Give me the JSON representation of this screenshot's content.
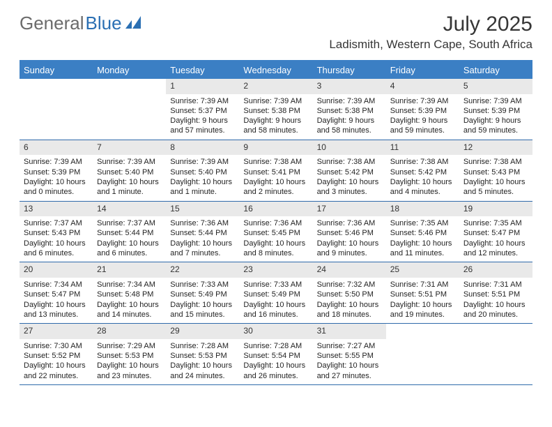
{
  "logo": {
    "general": "General",
    "blue": "Blue"
  },
  "title": "July 2025",
  "location": "Ladismith, Western Cape, South Africa",
  "colors": {
    "header_bg": "#3b7fc4",
    "header_text": "#ffffff",
    "daynum_bg": "#e9e9e9",
    "border": "#2f6aab",
    "text": "#232323",
    "logo_gray": "#6b6b6b",
    "logo_blue": "#2a6fb3"
  },
  "day_headers": [
    "Sunday",
    "Monday",
    "Tuesday",
    "Wednesday",
    "Thursday",
    "Friday",
    "Saturday"
  ],
  "weeks": [
    [
      null,
      null,
      {
        "n": "1",
        "sr": "Sunrise: 7:39 AM",
        "ss": "Sunset: 5:37 PM",
        "d1": "Daylight: 9 hours",
        "d2": "and 57 minutes."
      },
      {
        "n": "2",
        "sr": "Sunrise: 7:39 AM",
        "ss": "Sunset: 5:38 PM",
        "d1": "Daylight: 9 hours",
        "d2": "and 58 minutes."
      },
      {
        "n": "3",
        "sr": "Sunrise: 7:39 AM",
        "ss": "Sunset: 5:38 PM",
        "d1": "Daylight: 9 hours",
        "d2": "and 58 minutes."
      },
      {
        "n": "4",
        "sr": "Sunrise: 7:39 AM",
        "ss": "Sunset: 5:39 PM",
        "d1": "Daylight: 9 hours",
        "d2": "and 59 minutes."
      },
      {
        "n": "5",
        "sr": "Sunrise: 7:39 AM",
        "ss": "Sunset: 5:39 PM",
        "d1": "Daylight: 9 hours",
        "d2": "and 59 minutes."
      }
    ],
    [
      {
        "n": "6",
        "sr": "Sunrise: 7:39 AM",
        "ss": "Sunset: 5:39 PM",
        "d1": "Daylight: 10 hours",
        "d2": "and 0 minutes."
      },
      {
        "n": "7",
        "sr": "Sunrise: 7:39 AM",
        "ss": "Sunset: 5:40 PM",
        "d1": "Daylight: 10 hours",
        "d2": "and 1 minute."
      },
      {
        "n": "8",
        "sr": "Sunrise: 7:39 AM",
        "ss": "Sunset: 5:40 PM",
        "d1": "Daylight: 10 hours",
        "d2": "and 1 minute."
      },
      {
        "n": "9",
        "sr": "Sunrise: 7:38 AM",
        "ss": "Sunset: 5:41 PM",
        "d1": "Daylight: 10 hours",
        "d2": "and 2 minutes."
      },
      {
        "n": "10",
        "sr": "Sunrise: 7:38 AM",
        "ss": "Sunset: 5:42 PM",
        "d1": "Daylight: 10 hours",
        "d2": "and 3 minutes."
      },
      {
        "n": "11",
        "sr": "Sunrise: 7:38 AM",
        "ss": "Sunset: 5:42 PM",
        "d1": "Daylight: 10 hours",
        "d2": "and 4 minutes."
      },
      {
        "n": "12",
        "sr": "Sunrise: 7:38 AM",
        "ss": "Sunset: 5:43 PM",
        "d1": "Daylight: 10 hours",
        "d2": "and 5 minutes."
      }
    ],
    [
      {
        "n": "13",
        "sr": "Sunrise: 7:37 AM",
        "ss": "Sunset: 5:43 PM",
        "d1": "Daylight: 10 hours",
        "d2": "and 6 minutes."
      },
      {
        "n": "14",
        "sr": "Sunrise: 7:37 AM",
        "ss": "Sunset: 5:44 PM",
        "d1": "Daylight: 10 hours",
        "d2": "and 6 minutes."
      },
      {
        "n": "15",
        "sr": "Sunrise: 7:36 AM",
        "ss": "Sunset: 5:44 PM",
        "d1": "Daylight: 10 hours",
        "d2": "and 7 minutes."
      },
      {
        "n": "16",
        "sr": "Sunrise: 7:36 AM",
        "ss": "Sunset: 5:45 PM",
        "d1": "Daylight: 10 hours",
        "d2": "and 8 minutes."
      },
      {
        "n": "17",
        "sr": "Sunrise: 7:36 AM",
        "ss": "Sunset: 5:46 PM",
        "d1": "Daylight: 10 hours",
        "d2": "and 9 minutes."
      },
      {
        "n": "18",
        "sr": "Sunrise: 7:35 AM",
        "ss": "Sunset: 5:46 PM",
        "d1": "Daylight: 10 hours",
        "d2": "and 11 minutes."
      },
      {
        "n": "19",
        "sr": "Sunrise: 7:35 AM",
        "ss": "Sunset: 5:47 PM",
        "d1": "Daylight: 10 hours",
        "d2": "and 12 minutes."
      }
    ],
    [
      {
        "n": "20",
        "sr": "Sunrise: 7:34 AM",
        "ss": "Sunset: 5:47 PM",
        "d1": "Daylight: 10 hours",
        "d2": "and 13 minutes."
      },
      {
        "n": "21",
        "sr": "Sunrise: 7:34 AM",
        "ss": "Sunset: 5:48 PM",
        "d1": "Daylight: 10 hours",
        "d2": "and 14 minutes."
      },
      {
        "n": "22",
        "sr": "Sunrise: 7:33 AM",
        "ss": "Sunset: 5:49 PM",
        "d1": "Daylight: 10 hours",
        "d2": "and 15 minutes."
      },
      {
        "n": "23",
        "sr": "Sunrise: 7:33 AM",
        "ss": "Sunset: 5:49 PM",
        "d1": "Daylight: 10 hours",
        "d2": "and 16 minutes."
      },
      {
        "n": "24",
        "sr": "Sunrise: 7:32 AM",
        "ss": "Sunset: 5:50 PM",
        "d1": "Daylight: 10 hours",
        "d2": "and 18 minutes."
      },
      {
        "n": "25",
        "sr": "Sunrise: 7:31 AM",
        "ss": "Sunset: 5:51 PM",
        "d1": "Daylight: 10 hours",
        "d2": "and 19 minutes."
      },
      {
        "n": "26",
        "sr": "Sunrise: 7:31 AM",
        "ss": "Sunset: 5:51 PM",
        "d1": "Daylight: 10 hours",
        "d2": "and 20 minutes."
      }
    ],
    [
      {
        "n": "27",
        "sr": "Sunrise: 7:30 AM",
        "ss": "Sunset: 5:52 PM",
        "d1": "Daylight: 10 hours",
        "d2": "and 22 minutes."
      },
      {
        "n": "28",
        "sr": "Sunrise: 7:29 AM",
        "ss": "Sunset: 5:53 PM",
        "d1": "Daylight: 10 hours",
        "d2": "and 23 minutes."
      },
      {
        "n": "29",
        "sr": "Sunrise: 7:28 AM",
        "ss": "Sunset: 5:53 PM",
        "d1": "Daylight: 10 hours",
        "d2": "and 24 minutes."
      },
      {
        "n": "30",
        "sr": "Sunrise: 7:28 AM",
        "ss": "Sunset: 5:54 PM",
        "d1": "Daylight: 10 hours",
        "d2": "and 26 minutes."
      },
      {
        "n": "31",
        "sr": "Sunrise: 7:27 AM",
        "ss": "Sunset: 5:55 PM",
        "d1": "Daylight: 10 hours",
        "d2": "and 27 minutes."
      },
      null,
      null
    ]
  ]
}
